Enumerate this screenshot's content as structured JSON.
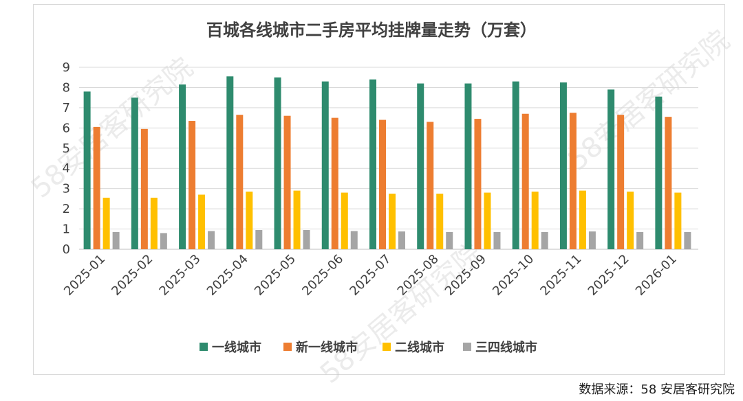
{
  "source": "数据来源：58 安居客研究院",
  "watermark": "58安居客研究院",
  "chart_data": {
    "type": "bar",
    "title": "百城各线城市二手房平均挂牌量走势（万套）",
    "categories": [
      "2025-01",
      "2025-02",
      "2025-03",
      "2025-04",
      "2025-05",
      "2025-06",
      "2025-07",
      "2025-08",
      "2025-09",
      "2025-10",
      "2025-11",
      "2025-12",
      "2026-01"
    ],
    "series": [
      {
        "name": "一线城市",
        "color": "#2e8b6e",
        "values": [
          7.8,
          7.5,
          8.15,
          8.55,
          8.5,
          8.3,
          8.4,
          8.2,
          8.2,
          8.3,
          8.25,
          7.9,
          7.55
        ]
      },
      {
        "name": "新一线城市",
        "color": "#ed7d31",
        "values": [
          6.05,
          5.95,
          6.35,
          6.65,
          6.6,
          6.5,
          6.4,
          6.3,
          6.45,
          6.7,
          6.75,
          6.65,
          6.55
        ]
      },
      {
        "name": "二线城市",
        "color": "#ffc000",
        "values": [
          2.55,
          2.55,
          2.7,
          2.85,
          2.9,
          2.8,
          2.75,
          2.75,
          2.8,
          2.85,
          2.9,
          2.85,
          2.8
        ]
      },
      {
        "name": "三四线城市",
        "color": "#a5a5a5",
        "values": [
          0.85,
          0.8,
          0.9,
          0.95,
          0.95,
          0.9,
          0.88,
          0.85,
          0.85,
          0.85,
          0.88,
          0.85,
          0.85
        ]
      }
    ],
    "ylim": [
      0,
      9
    ],
    "yticks": [
      0,
      1,
      2,
      3,
      4,
      5,
      6,
      7,
      8,
      9
    ],
    "grid": true,
    "legend": "bottom"
  }
}
